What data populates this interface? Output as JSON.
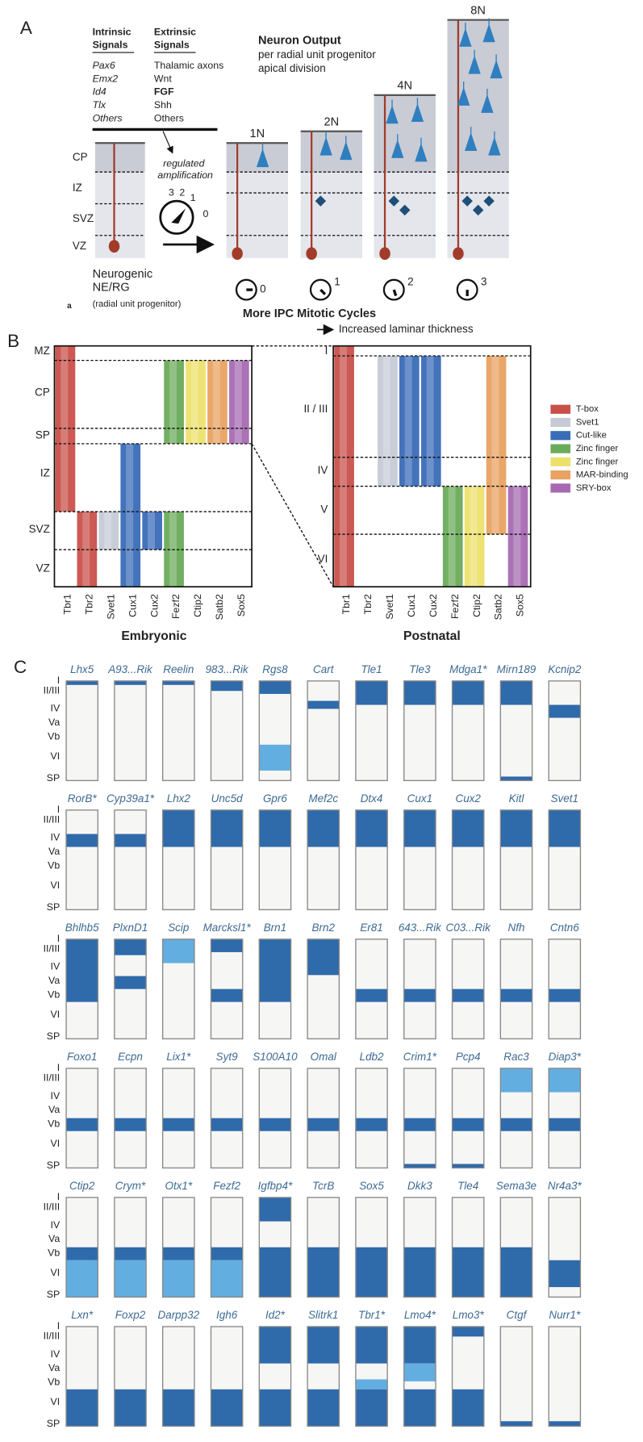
{
  "panelA": {
    "label": "A",
    "intrinsic": {
      "title": [
        "Intrinsic",
        "Signals"
      ],
      "items": [
        "Pax6",
        "Emx2",
        "Id4",
        "Tlx",
        "Others"
      ]
    },
    "extrinsic": {
      "title": [
        "Extrinsic",
        "Signals"
      ],
      "items": [
        "Thalamic axons",
        "Wnt",
        "FGF",
        "Shh",
        "Others"
      ]
    },
    "layers": [
      "CP",
      "IZ",
      "SVZ",
      "VZ"
    ],
    "amplification": [
      "regulated",
      "amplification"
    ],
    "dialNumbers": [
      "3",
      "2",
      "1",
      "0"
    ],
    "progenitor": [
      "Neurogenic",
      "NE/RG",
      "(radial unit progenitor)"
    ],
    "sublabel": "a",
    "output": [
      "Neuron Output",
      "per radial unit progenitor",
      "apical division"
    ],
    "columns": [
      "1N",
      "2N",
      "4N",
      "8N"
    ],
    "cycles": [
      "0",
      "1",
      "2",
      "3"
    ],
    "cyclesTitle": "More IPC Mitotic Cycles",
    "thickness": "Increased laminar thickness"
  },
  "panelB": {
    "label": "B",
    "embryonicLayers": [
      "MZ",
      "CP",
      "SP",
      "IZ",
      "SVZ",
      "VZ"
    ],
    "postnatalLayers": [
      "I",
      "II / III",
      "IV",
      "V",
      "VI"
    ],
    "genes": [
      "Tbr1",
      "Tbr2",
      "Svet1",
      "Cux1",
      "Cux2",
      "Fezf2",
      "Ctip2",
      "Satb2",
      "Sox5"
    ],
    "embryonicTitle": "Embryonic",
    "postnatalTitle": "Postnatal",
    "legend": [
      {
        "name": "T-box",
        "color": "#c9504a"
      },
      {
        "name": "Svet1",
        "color": "#c5cad6"
      },
      {
        "name": "Cut-like",
        "color": "#3a6cb8"
      },
      {
        "name": "Zinc finger",
        "color": "#6aab5a"
      },
      {
        "name": "Zinc finger",
        "color": "#ece06c"
      },
      {
        "name": "MAR-binding",
        "color": "#e8a262"
      },
      {
        "name": "SRY-box",
        "color": "#a76ab2"
      }
    ]
  },
  "panelC": {
    "label": "C",
    "layers": [
      "I",
      "II/III",
      "IV",
      "Va",
      "Vb",
      "VI",
      "SP"
    ],
    "rows": [
      {
        "genes": [
          "Lhx5",
          "A93...Rik",
          "Reelin",
          "983...Rik",
          "Rgs8",
          "Cart",
          "Tle1",
          "Tle3",
          "Mdga1*",
          "Mirn189",
          "Kcnip2"
        ]
      },
      {
        "genes": [
          "RorB*",
          "Cyp39a1*",
          "Lhx2",
          "Unc5d",
          "Gpr6",
          "Mef2c",
          "Dtx4",
          "Cux1",
          "Cux2",
          "Kitl",
          "Svet1"
        ]
      },
      {
        "genes": [
          "Bhlhb5",
          "PlxnD1",
          "Scip",
          "Marcksl1*",
          "Brn1",
          "Brn2",
          "Er81",
          "643...Rik",
          "C03...Rik",
          "Nfh",
          "Cntn6"
        ]
      },
      {
        "genes": [
          "Foxo1",
          "Ecpn",
          "Lix1*",
          "Syt9",
          "S100A10",
          "Omal",
          "Ldb2",
          "Crim1*",
          "Pcp4",
          "Rac3",
          "Diap3*"
        ]
      },
      {
        "genes": [
          "Ctip2",
          "Crym*",
          "Otx1*",
          "Fezf2",
          "Igfbp4*",
          "TcrB",
          "Sox5",
          "Dkk3",
          "Tle4",
          "Sema3e",
          "Nr4a3*"
        ]
      },
      {
        "genes": [
          "Lxn*",
          "Foxp2",
          "Darpp32",
          "Igh6",
          "Id2*",
          "Slitrk1",
          "Tbr1*",
          "Lmo4*",
          "Lmo3*",
          "Ctgf",
          "Nurr1*"
        ]
      }
    ]
  }
}
